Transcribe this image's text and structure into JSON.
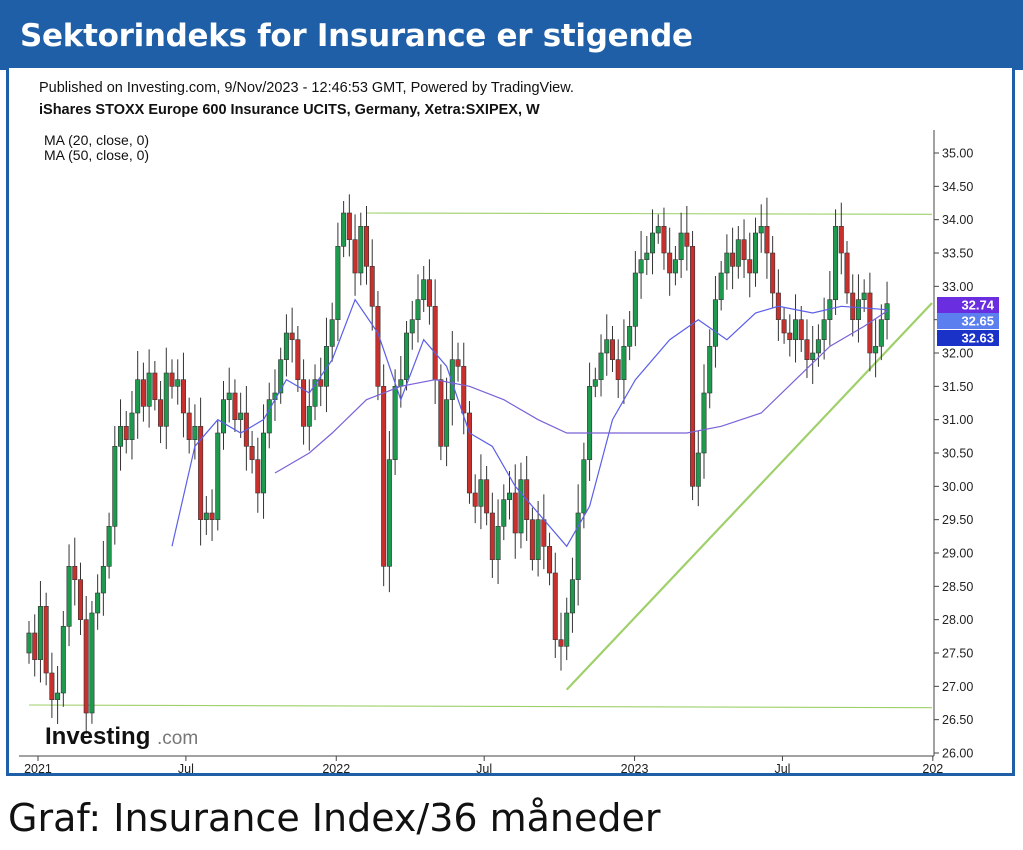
{
  "banner": {
    "title": "Sektorindeks for Insurance er stigende"
  },
  "caption": "Graf: Insurance Index/36 måneder",
  "logo": {
    "word": "Investing",
    "suffix": ".com"
  },
  "chart_data": {
    "type": "candlestick",
    "published": "Published on Investing.com, 9/Nov/2023 - 12:46:53 GMT, Powered by TradingView.",
    "instrument": "iShares STOXX Europe 600 Insurance UCITS, Germany, Xetra:SXIPEX, W",
    "indicators": [
      "MA (20, close, 0)",
      "MA (50, close, 0)"
    ],
    "y_ticks": [
      "35.00",
      "34.50",
      "34.00",
      "33.50",
      "33.00",
      "32.50",
      "32.00",
      "31.50",
      "31.00",
      "30.50",
      "30.00",
      "29.50",
      "29.00",
      "28.50",
      "28.00",
      "27.50",
      "27.00",
      "26.50",
      "26.00"
    ],
    "ylim": [
      26.0,
      35.0
    ],
    "x_ticks": [
      "2021",
      "Jul",
      "2022",
      "Jul",
      "2023",
      "Jul",
      "202"
    ],
    "price_labels": [
      {
        "value": 32.74,
        "text": "32.74",
        "color": "#6a2de0"
      },
      {
        "value": 32.65,
        "text": "32.65",
        "color": "#5c7ff0"
      },
      {
        "value": 32.63,
        "text": "32.63",
        "color": "#1a32c8"
      }
    ],
    "colors": {
      "up": "#1e9a4e",
      "down": "#c8302e",
      "ma20": "#5b5fe8",
      "ma50": "#7b62d8",
      "trendline": "#9fd06a"
    },
    "trendlines": [
      {
        "name": "resistance",
        "from": [
          "2022-02-07",
          34.1
        ],
        "to": [
          "2023-12-31",
          34.08
        ]
      },
      {
        "name": "support",
        "from": [
          "2020-12-21",
          26.72
        ],
        "to": [
          "2023-12-31",
          26.68
        ]
      },
      {
        "name": "rising-support",
        "from": [
          "2022-10-10",
          26.95
        ],
        "to": [
          "2023-12-31",
          32.75
        ]
      }
    ],
    "closes": [
      {
        "d": "2020-12-21",
        "c": 27.8
      },
      {
        "d": "2020-12-28",
        "c": 27.4
      },
      {
        "d": "2021-01-04",
        "c": 28.2
      },
      {
        "d": "2021-01-11",
        "c": 27.2
      },
      {
        "d": "2021-01-18",
        "c": 26.8
      },
      {
        "d": "2021-01-25",
        "c": 26.9
      },
      {
        "d": "2021-02-01",
        "c": 27.9
      },
      {
        "d": "2021-02-08",
        "c": 28.8
      },
      {
        "d": "2021-02-15",
        "c": 28.6
      },
      {
        "d": "2021-02-22",
        "c": 28.0
      },
      {
        "d": "2021-03-01",
        "c": 26.6
      },
      {
        "d": "2021-03-08",
        "c": 28.1
      },
      {
        "d": "2021-03-15",
        "c": 28.4
      },
      {
        "d": "2021-03-22",
        "c": 28.8
      },
      {
        "d": "2021-03-29",
        "c": 29.4
      },
      {
        "d": "2021-04-05",
        "c": 30.6
      },
      {
        "d": "2021-04-12",
        "c": 30.9
      },
      {
        "d": "2021-04-19",
        "c": 30.7
      },
      {
        "d": "2021-04-26",
        "c": 31.1
      },
      {
        "d": "2021-05-03",
        "c": 31.6
      },
      {
        "d": "2021-05-10",
        "c": 31.2
      },
      {
        "d": "2021-05-17",
        "c": 31.7
      },
      {
        "d": "2021-05-24",
        "c": 31.3
      },
      {
        "d": "2021-05-31",
        "c": 30.9
      },
      {
        "d": "2021-06-07",
        "c": 31.7
      },
      {
        "d": "2021-06-14",
        "c": 31.5
      },
      {
        "d": "2021-06-21",
        "c": 31.6
      },
      {
        "d": "2021-06-28",
        "c": 31.1
      },
      {
        "d": "2021-07-05",
        "c": 30.7
      },
      {
        "d": "2021-07-12",
        "c": 30.9
      },
      {
        "d": "2021-07-19",
        "c": 29.5
      },
      {
        "d": "2021-07-26",
        "c": 29.6
      },
      {
        "d": "2021-08-02",
        "c": 29.5
      },
      {
        "d": "2021-08-09",
        "c": 30.8
      },
      {
        "d": "2021-08-16",
        "c": 31.3
      },
      {
        "d": "2021-08-23",
        "c": 31.4
      },
      {
        "d": "2021-08-30",
        "c": 31.0
      },
      {
        "d": "2021-09-06",
        "c": 31.1
      },
      {
        "d": "2021-09-13",
        "c": 30.6
      },
      {
        "d": "2021-09-20",
        "c": 30.4
      },
      {
        "d": "2021-09-27",
        "c": 29.9
      },
      {
        "d": "2021-10-04",
        "c": 30.8
      },
      {
        "d": "2021-10-11",
        "c": 31.3
      },
      {
        "d": "2021-10-18",
        "c": 31.4
      },
      {
        "d": "2021-10-25",
        "c": 31.9
      },
      {
        "d": "2021-11-01",
        "c": 32.3
      },
      {
        "d": "2021-11-08",
        "c": 32.2
      },
      {
        "d": "2021-11-15",
        "c": 31.6
      },
      {
        "d": "2021-11-22",
        "c": 30.9
      },
      {
        "d": "2021-11-29",
        "c": 31.2
      },
      {
        "d": "2021-12-06",
        "c": 31.6
      },
      {
        "d": "2021-12-13",
        "c": 31.5
      },
      {
        "d": "2021-12-20",
        "c": 32.1
      },
      {
        "d": "2021-12-27",
        "c": 32.5
      },
      {
        "d": "2022-01-03",
        "c": 33.6
      },
      {
        "d": "2022-01-10",
        "c": 34.1
      },
      {
        "d": "2022-01-17",
        "c": 33.7
      },
      {
        "d": "2022-01-24",
        "c": 33.2
      },
      {
        "d": "2022-01-31",
        "c": 33.9
      },
      {
        "d": "2022-02-07",
        "c": 33.3
      },
      {
        "d": "2022-02-14",
        "c": 32.7
      },
      {
        "d": "2022-02-21",
        "c": 31.5
      },
      {
        "d": "2022-02-28",
        "c": 28.8
      },
      {
        "d": "2022-03-07",
        "c": 30.4
      },
      {
        "d": "2022-03-14",
        "c": 31.5
      },
      {
        "d": "2022-03-21",
        "c": 31.6
      },
      {
        "d": "2022-03-28",
        "c": 32.3
      },
      {
        "d": "2022-04-04",
        "c": 32.5
      },
      {
        "d": "2022-04-11",
        "c": 32.8
      },
      {
        "d": "2022-04-18",
        "c": 33.1
      },
      {
        "d": "2022-04-25",
        "c": 32.7
      },
      {
        "d": "2022-05-02",
        "c": 31.6
      },
      {
        "d": "2022-05-09",
        "c": 30.6
      },
      {
        "d": "2022-05-16",
        "c": 31.3
      },
      {
        "d": "2022-05-23",
        "c": 31.9
      },
      {
        "d": "2022-05-30",
        "c": 31.8
      },
      {
        "d": "2022-06-06",
        "c": 31.1
      },
      {
        "d": "2022-06-13",
        "c": 29.9
      },
      {
        "d": "2022-06-20",
        "c": 29.7
      },
      {
        "d": "2022-06-27",
        "c": 30.1
      },
      {
        "d": "2022-07-04",
        "c": 29.6
      },
      {
        "d": "2022-07-11",
        "c": 28.9
      },
      {
        "d": "2022-07-18",
        "c": 29.4
      },
      {
        "d": "2022-07-25",
        "c": 29.8
      },
      {
        "d": "2022-08-01",
        "c": 29.9
      },
      {
        "d": "2022-08-08",
        "c": 29.3
      },
      {
        "d": "2022-08-15",
        "c": 30.1
      },
      {
        "d": "2022-08-22",
        "c": 29.5
      },
      {
        "d": "2022-08-29",
        "c": 28.9
      },
      {
        "d": "2022-09-05",
        "c": 29.5
      },
      {
        "d": "2022-09-12",
        "c": 29.1
      },
      {
        "d": "2022-09-19",
        "c": 28.7
      },
      {
        "d": "2022-09-26",
        "c": 27.7
      },
      {
        "d": "2022-10-03",
        "c": 27.6
      },
      {
        "d": "2022-10-10",
        "c": 28.1
      },
      {
        "d": "2022-10-17",
        "c": 28.6
      },
      {
        "d": "2022-10-24",
        "c": 29.6
      },
      {
        "d": "2022-10-31",
        "c": 30.4
      },
      {
        "d": "2022-11-07",
        "c": 31.5
      },
      {
        "d": "2022-11-14",
        "c": 31.6
      },
      {
        "d": "2022-11-21",
        "c": 32.0
      },
      {
        "d": "2022-11-28",
        "c": 32.2
      },
      {
        "d": "2022-12-05",
        "c": 31.9
      },
      {
        "d": "2022-12-12",
        "c": 31.6
      },
      {
        "d": "2022-12-19",
        "c": 32.1
      },
      {
        "d": "2022-12-26",
        "c": 32.4
      },
      {
        "d": "2023-01-02",
        "c": 33.2
      },
      {
        "d": "2023-01-09",
        "c": 33.4
      },
      {
        "d": "2023-01-16",
        "c": 33.5
      },
      {
        "d": "2023-01-23",
        "c": 33.8
      },
      {
        "d": "2023-01-30",
        "c": 33.9
      },
      {
        "d": "2023-02-06",
        "c": 33.5
      },
      {
        "d": "2023-02-13",
        "c": 33.2
      },
      {
        "d": "2023-02-20",
        "c": 33.4
      },
      {
        "d": "2023-02-27",
        "c": 33.8
      },
      {
        "d": "2023-03-06",
        "c": 33.6
      },
      {
        "d": "2023-03-13",
        "c": 30.0
      },
      {
        "d": "2023-03-20",
        "c": 30.5
      },
      {
        "d": "2023-03-27",
        "c": 31.4
      },
      {
        "d": "2023-04-03",
        "c": 32.1
      },
      {
        "d": "2023-04-10",
        "c": 32.8
      },
      {
        "d": "2023-04-17",
        "c": 33.2
      },
      {
        "d": "2023-04-24",
        "c": 33.5
      },
      {
        "d": "2023-05-01",
        "c": 33.3
      },
      {
        "d": "2023-05-08",
        "c": 33.7
      },
      {
        "d": "2023-05-15",
        "c": 33.4
      },
      {
        "d": "2023-05-22",
        "c": 33.2
      },
      {
        "d": "2023-05-29",
        "c": 33.8
      },
      {
        "d": "2023-06-05",
        "c": 33.9
      },
      {
        "d": "2023-06-12",
        "c": 33.5
      },
      {
        "d": "2023-06-19",
        "c": 32.9
      },
      {
        "d": "2023-06-26",
        "c": 32.5
      },
      {
        "d": "2023-07-03",
        "c": 32.3
      },
      {
        "d": "2023-07-10",
        "c": 32.2
      },
      {
        "d": "2023-07-17",
        "c": 32.5
      },
      {
        "d": "2023-07-24",
        "c": 32.2
      },
      {
        "d": "2023-07-31",
        "c": 31.9
      },
      {
        "d": "2023-08-07",
        "c": 32.0
      },
      {
        "d": "2023-08-14",
        "c": 32.2
      },
      {
        "d": "2023-08-21",
        "c": 32.5
      },
      {
        "d": "2023-08-28",
        "c": 32.8
      },
      {
        "d": "2023-09-04",
        "c": 33.9
      },
      {
        "d": "2023-09-11",
        "c": 33.5
      },
      {
        "d": "2023-09-18",
        "c": 32.9
      },
      {
        "d": "2023-09-25",
        "c": 32.5
      },
      {
        "d": "2023-10-02",
        "c": 32.8
      },
      {
        "d": "2023-10-09",
        "c": 32.9
      },
      {
        "d": "2023-10-16",
        "c": 32.0
      },
      {
        "d": "2023-10-23",
        "c": 32.1
      },
      {
        "d": "2023-10-30",
        "c": 32.5
      },
      {
        "d": "2023-11-06",
        "c": 32.74
      }
    ],
    "ma20": [
      [
        "2021-06-14",
        29.1
      ],
      [
        "2021-07-12",
        30.6
      ],
      [
        "2021-08-09",
        31.0
      ],
      [
        "2021-09-06",
        30.8
      ],
      [
        "2021-10-04",
        31.0
      ],
      [
        "2021-11-01",
        31.6
      ],
      [
        "2021-11-29",
        31.4
      ],
      [
        "2021-12-27",
        31.9
      ],
      [
        "2022-01-24",
        32.8
      ],
      [
        "2022-02-21",
        32.3
      ],
      [
        "2022-03-21",
        31.3
      ],
      [
        "2022-04-18",
        32.2
      ],
      [
        "2022-05-16",
        31.8
      ],
      [
        "2022-06-13",
        30.8
      ],
      [
        "2022-07-11",
        30.6
      ],
      [
        "2022-08-08",
        30.0
      ],
      [
        "2022-09-05",
        29.6
      ],
      [
        "2022-10-10",
        29.1
      ],
      [
        "2022-11-07",
        29.7
      ],
      [
        "2022-12-05",
        31.0
      ],
      [
        "2023-01-02",
        31.6
      ],
      [
        "2023-02-13",
        32.2
      ],
      [
        "2023-03-20",
        32.5
      ],
      [
        "2023-04-24",
        32.2
      ],
      [
        "2023-05-29",
        32.6
      ],
      [
        "2023-06-26",
        32.7
      ],
      [
        "2023-08-07",
        32.6
      ],
      [
        "2023-09-11",
        32.7
      ],
      [
        "2023-11-06",
        32.65
      ]
    ],
    "ma50": [
      [
        "2021-10-18",
        30.2
      ],
      [
        "2021-11-29",
        30.5
      ],
      [
        "2021-12-27",
        30.8
      ],
      [
        "2022-02-07",
        31.3
      ],
      [
        "2022-03-21",
        31.5
      ],
      [
        "2022-05-02",
        31.6
      ],
      [
        "2022-06-13",
        31.5
      ],
      [
        "2022-07-25",
        31.3
      ],
      [
        "2022-09-05",
        31.0
      ],
      [
        "2022-10-10",
        30.8
      ],
      [
        "2022-12-05",
        30.8
      ],
      [
        "2023-01-16",
        30.8
      ],
      [
        "2023-03-06",
        30.8
      ],
      [
        "2023-04-17",
        30.9
      ],
      [
        "2023-06-05",
        31.1
      ],
      [
        "2023-07-17",
        31.6
      ],
      [
        "2023-08-28",
        32.1
      ],
      [
        "2023-10-09",
        32.4
      ],
      [
        "2023-11-06",
        32.63
      ]
    ]
  }
}
